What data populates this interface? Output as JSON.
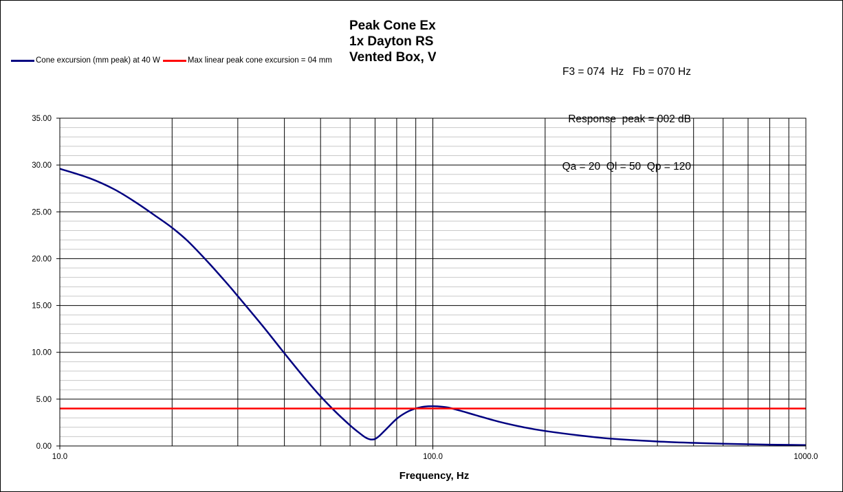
{
  "chart_data": {
    "type": "line",
    "title_lines": [
      "Peak Cone Excursion",
      "1x Dayton RS",
      "Vented Box, V"
    ],
    "info_lines": [
      "F3 = 074  Hz   Fb = 070 Hz",
      "Response  peak = 002 dB",
      "Qa = 20  Ql = 50  Qp = 120"
    ],
    "xlabel": "Frequency, Hz",
    "ylabel": "",
    "xscale": "log",
    "xlim": [
      10,
      1000
    ],
    "ylim": [
      0,
      35
    ],
    "x_tick_labels": [
      "10.0",
      "100.0",
      "1000.0"
    ],
    "y_tick_labels": [
      "0.00",
      "5.00",
      "10.00",
      "15.00",
      "20.00",
      "25.00",
      "30.00",
      "35.00"
    ],
    "grid": true,
    "legend_position": "top-left",
    "series": [
      {
        "name": "Cone excursion (mm peak) at 40 W",
        "color": "#000080",
        "x": [
          10,
          12,
          14,
          16,
          18,
          20,
          22,
          25,
          28,
          30,
          35,
          40,
          45,
          50,
          55,
          60,
          63,
          66,
          68,
          70,
          72,
          75,
          80,
          85,
          90,
          95,
          100,
          105,
          110,
          120,
          130,
          150,
          175,
          200,
          250,
          300,
          400,
          500,
          600,
          700,
          800,
          1000
        ],
        "y": [
          29.6,
          28.6,
          27.4,
          26.0,
          24.6,
          23.3,
          21.9,
          19.6,
          17.4,
          16.0,
          12.8,
          9.9,
          7.4,
          5.3,
          3.6,
          2.2,
          1.5,
          0.9,
          0.7,
          0.75,
          1.1,
          1.8,
          2.9,
          3.6,
          4.0,
          4.2,
          4.25,
          4.2,
          4.1,
          3.7,
          3.3,
          2.6,
          2.0,
          1.6,
          1.1,
          0.78,
          0.48,
          0.33,
          0.24,
          0.18,
          0.14,
          0.09
        ]
      },
      {
        "name": "Max linear peak cone excursion = 04 mm",
        "color": "#ff0000",
        "x": [
          10,
          1000
        ],
        "y": [
          4,
          4
        ]
      }
    ]
  }
}
